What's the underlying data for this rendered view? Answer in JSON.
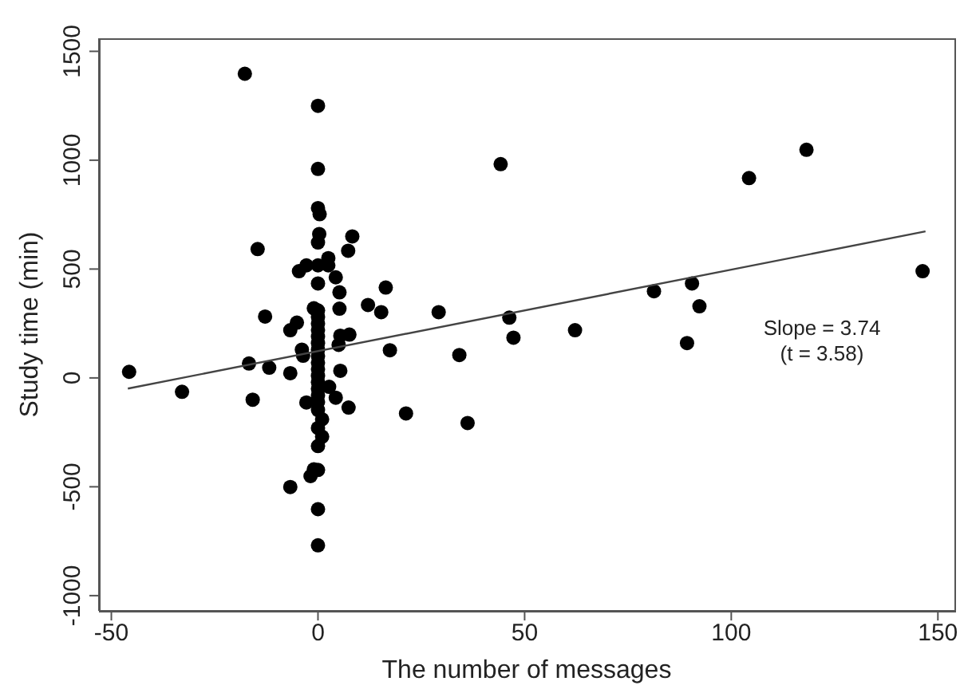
{
  "chart_data": {
    "type": "scatter",
    "xlabel": "The number of messages",
    "ylabel": "Study time (min)",
    "xlim": [
      -53,
      154
    ],
    "ylim": [
      -1070,
      1560
    ],
    "xticks": [
      -50,
      0,
      50,
      100,
      150
    ],
    "yticks": [
      -1000,
      -500,
      0,
      500,
      1000,
      1500
    ],
    "grid": false,
    "annotations": [
      "Slope = 3.74",
      "(t = 3.58)"
    ],
    "series": [
      {
        "marker": "circle",
        "color": "#000000",
        "x": [
          -17.7,
          0,
          0,
          44.2,
          104.3,
          118.2,
          146.3,
          81.3,
          90.5,
          92.3,
          89.3,
          62.2,
          46.3,
          47.3,
          34.2,
          36.2,
          21.3,
          29.2,
          16.4,
          12.1,
          15.3,
          17.4,
          8.3,
          7.3,
          4.3,
          5.2,
          5.2,
          2.5,
          2.5,
          0,
          0.4,
          0.3,
          0,
          0,
          0,
          0,
          7.6,
          5.4,
          5,
          5.4,
          2.7,
          4.3,
          7.4,
          0,
          0,
          0,
          0,
          -1.8,
          0,
          0,
          -6.7,
          -2.8,
          -6.7,
          -11.8,
          -16.7,
          -15.8,
          -12.8,
          -14.6,
          -4.6,
          -2.8,
          -6.7,
          -5.1,
          -3.9,
          -3.6,
          -32.9,
          -45.7,
          0,
          0,
          0,
          0,
          0,
          0,
          0,
          0,
          0,
          0,
          0,
          0,
          0,
          0,
          1,
          -1,
          1,
          -1
        ],
        "values": [
          1397,
          1250,
          960,
          982,
          918,
          1048,
          490,
          398,
          434,
          329,
          160,
          219,
          277,
          185,
          105,
          -207,
          -163,
          302,
          415,
          335,
          302,
          127,
          650,
          584,
          462,
          393,
          318,
          550,
          517,
          780,
          752,
          661,
          622,
          517,
          434,
          310,
          199,
          194,
          152,
          33,
          -41,
          -91,
          -136,
          -147,
          -230,
          -313,
          -423,
          -451,
          -603,
          -769,
          -501,
          -113,
          22,
          47,
          66,
          -100,
          282,
          592,
          490,
          517,
          219,
          254,
          130,
          102,
          -64,
          28,
          280,
          250,
          220,
          190,
          160,
          130,
          100,
          70,
          40,
          10,
          -20,
          -50,
          -80,
          -110,
          -270,
          -420,
          -190,
          320
        ]
      },
      {
        "type": "line",
        "color": "#444444",
        "line_style": "solid",
        "x": [
          -46,
          147
        ],
        "values": [
          -49,
          673
        ]
      }
    ]
  }
}
